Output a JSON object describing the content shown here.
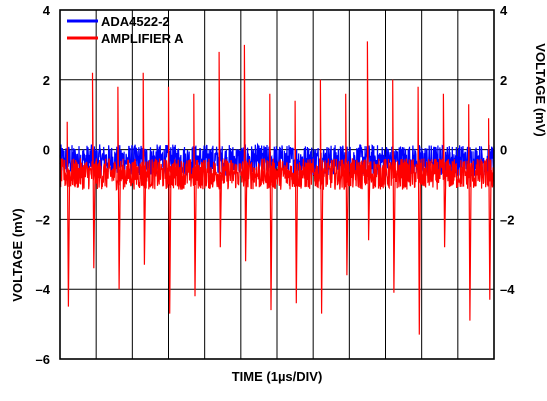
{
  "chart_data": {
    "type": "line",
    "xlabel": "TIME (1µs/DIV)",
    "x_divisions": 12,
    "left_axis": {
      "label": "VOLTAGE (mV)",
      "ticks": [
        "4",
        "2",
        "0",
        "–2",
        "–4",
        "–6"
      ],
      "range": [
        -6,
        4
      ]
    },
    "right_axis": {
      "label": "VOLTAGE (mV)",
      "ticks": [
        "4",
        "2",
        "0",
        "–2",
        "–4"
      ],
      "range": [
        -4,
        4
      ]
    },
    "grid": true,
    "legend_position": "top-left",
    "series": [
      {
        "name": "ADA4522-2",
        "color": "#0000ff",
        "axis": "right",
        "baseline_mv": -0.3,
        "noise_pp_mv": 0.9,
        "spikes": []
      },
      {
        "name": "AMPLIFIER A",
        "color": "#ff0000",
        "axis": "left",
        "baseline_mv": -0.7,
        "noise_pp_mv": 0.9,
        "spikes": [
          {
            "t_div": 0.2,
            "up": 0.8,
            "down": -4.5
          },
          {
            "t_div": 0.9,
            "up": 2.2,
            "down": -3.4
          },
          {
            "t_div": 1.6,
            "up": 1.8,
            "down": -4.0
          },
          {
            "t_div": 2.3,
            "up": 2.2,
            "down": -3.3
          },
          {
            "t_div": 3.0,
            "up": 1.8,
            "down": -4.7
          },
          {
            "t_div": 3.7,
            "up": 1.6,
            "down": -4.2
          },
          {
            "t_div": 4.4,
            "up": 2.8,
            "down": -2.8
          },
          {
            "t_div": 5.1,
            "up": 3.0,
            "down": -3.2
          },
          {
            "t_div": 5.8,
            "up": 1.6,
            "down": -4.6
          },
          {
            "t_div": 6.5,
            "up": 1.4,
            "down": -4.4
          },
          {
            "t_div": 7.2,
            "up": 2.0,
            "down": -4.7
          },
          {
            "t_div": 7.9,
            "up": 1.6,
            "down": -3.6
          },
          {
            "t_div": 8.5,
            "up": 3.1,
            "down": -2.6
          },
          {
            "t_div": 9.2,
            "up": 2.0,
            "down": -4.1
          },
          {
            "t_div": 9.9,
            "up": 1.8,
            "down": -5.3
          },
          {
            "t_div": 10.6,
            "up": 1.6,
            "down": -2.8
          },
          {
            "t_div": 11.3,
            "up": 1.3,
            "down": -4.9
          },
          {
            "t_div": 11.85,
            "up": 0.9,
            "down": -4.3
          }
        ]
      }
    ]
  }
}
